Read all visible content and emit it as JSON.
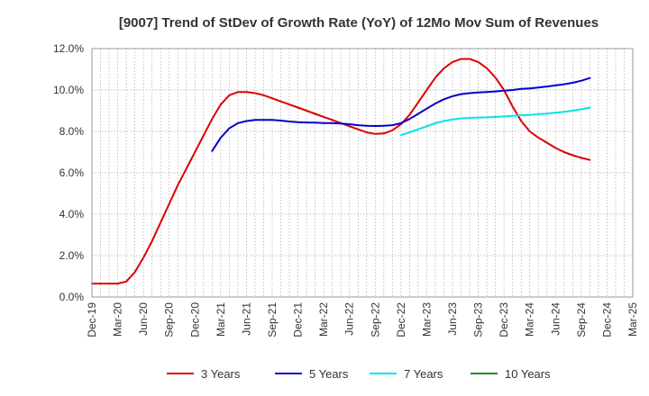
{
  "chart_data": {
    "type": "line",
    "title": "[9007]  Trend of StDev of Growth Rate (YoY) of 12Mo Mov Sum of Revenues",
    "xlabel": "",
    "ylabel": "",
    "ylim": [
      0,
      12
    ],
    "y_ticks": [
      {
        "value": 0,
        "label": "0.0%"
      },
      {
        "value": 2,
        "label": "2.0%"
      },
      {
        "value": 4,
        "label": "4.0%"
      },
      {
        "value": 6,
        "label": "6.0%"
      },
      {
        "value": 8,
        "label": "8.0%"
      },
      {
        "value": 10,
        "label": "10.0%"
      },
      {
        "value": 12,
        "label": "12.0%"
      }
    ],
    "x_ticks": [
      "Dec-19",
      "Mar-20",
      "Jun-20",
      "Sep-20",
      "Dec-20",
      "Mar-21",
      "Jun-21",
      "Sep-21",
      "Dec-21",
      "Mar-22",
      "Jun-22",
      "Sep-22",
      "Dec-22",
      "Mar-23",
      "Jun-23",
      "Sep-23",
      "Dec-23",
      "Mar-24",
      "Jun-24",
      "Sep-24",
      "Dec-24",
      "Mar-25"
    ],
    "grid": true,
    "legend_position": "bottom",
    "series": [
      {
        "name": "3 Years",
        "color": "#dd0000",
        "points": [
          [
            0,
            0.65
          ],
          [
            1,
            0.65
          ],
          [
            2,
            0.65
          ],
          [
            3,
            0.65
          ],
          [
            4,
            0.75
          ],
          [
            5,
            1.2
          ],
          [
            6,
            1.9
          ],
          [
            7,
            2.7
          ],
          [
            8,
            3.6
          ],
          [
            9,
            4.5
          ],
          [
            10,
            5.4
          ],
          [
            11,
            6.2
          ],
          [
            12,
            7.0
          ],
          [
            13,
            7.8
          ],
          [
            14,
            8.6
          ],
          [
            15,
            9.3
          ],
          [
            16,
            9.75
          ],
          [
            17,
            9.9
          ],
          [
            18,
            9.9
          ],
          [
            19,
            9.85
          ],
          [
            20,
            9.75
          ],
          [
            21,
            9.6
          ],
          [
            22,
            9.45
          ],
          [
            23,
            9.3
          ],
          [
            24,
            9.15
          ],
          [
            25,
            9.0
          ],
          [
            26,
            8.85
          ],
          [
            27,
            8.7
          ],
          [
            28,
            8.55
          ],
          [
            29,
            8.4
          ],
          [
            30,
            8.25
          ],
          [
            31,
            8.1
          ],
          [
            32,
            7.95
          ],
          [
            33,
            7.88
          ],
          [
            34,
            7.9
          ],
          [
            35,
            8.05
          ],
          [
            36,
            8.35
          ],
          [
            37,
            8.8
          ],
          [
            38,
            9.4
          ],
          [
            39,
            10.0
          ],
          [
            40,
            10.6
          ],
          [
            41,
            11.05
          ],
          [
            42,
            11.35
          ],
          [
            43,
            11.5
          ],
          [
            44,
            11.5
          ],
          [
            45,
            11.35
          ],
          [
            46,
            11.05
          ],
          [
            47,
            10.6
          ],
          [
            48,
            10.0
          ],
          [
            49,
            9.2
          ],
          [
            50,
            8.5
          ],
          [
            51,
            8.0
          ],
          [
            52,
            7.7
          ],
          [
            53,
            7.45
          ],
          [
            54,
            7.2
          ],
          [
            55,
            7.0
          ],
          [
            56,
            6.85
          ],
          [
            57,
            6.72
          ],
          [
            58,
            6.62
          ]
        ]
      },
      {
        "name": "5 Years",
        "color": "#0000cc",
        "points": [
          [
            14,
            7.05
          ],
          [
            15,
            7.7
          ],
          [
            16,
            8.15
          ],
          [
            17,
            8.4
          ],
          [
            18,
            8.5
          ],
          [
            19,
            8.55
          ],
          [
            20,
            8.55
          ],
          [
            21,
            8.55
          ],
          [
            22,
            8.52
          ],
          [
            23,
            8.48
          ],
          [
            24,
            8.45
          ],
          [
            25,
            8.43
          ],
          [
            26,
            8.42
          ],
          [
            27,
            8.4
          ],
          [
            28,
            8.4
          ],
          [
            29,
            8.38
          ],
          [
            30,
            8.35
          ],
          [
            31,
            8.3
          ],
          [
            32,
            8.27
          ],
          [
            33,
            8.26
          ],
          [
            34,
            8.27
          ],
          [
            35,
            8.3
          ],
          [
            36,
            8.4
          ],
          [
            37,
            8.6
          ],
          [
            38,
            8.85
          ],
          [
            39,
            9.1
          ],
          [
            40,
            9.35
          ],
          [
            41,
            9.55
          ],
          [
            42,
            9.7
          ],
          [
            43,
            9.8
          ],
          [
            44,
            9.85
          ],
          [
            45,
            9.88
          ],
          [
            46,
            9.9
          ],
          [
            47,
            9.93
          ],
          [
            48,
            9.97
          ],
          [
            49,
            10.0
          ],
          [
            50,
            10.05
          ],
          [
            51,
            10.08
          ],
          [
            52,
            10.12
          ],
          [
            53,
            10.17
          ],
          [
            54,
            10.22
          ],
          [
            55,
            10.28
          ],
          [
            56,
            10.35
          ],
          [
            57,
            10.45
          ],
          [
            58,
            10.58
          ]
        ]
      },
      {
        "name": "7 Years",
        "color": "#00e5e5",
        "points": [
          [
            36,
            7.82
          ],
          [
            37,
            7.95
          ],
          [
            38,
            8.1
          ],
          [
            39,
            8.25
          ],
          [
            40,
            8.4
          ],
          [
            41,
            8.5
          ],
          [
            42,
            8.58
          ],
          [
            43,
            8.63
          ],
          [
            44,
            8.65
          ],
          [
            45,
            8.67
          ],
          [
            46,
            8.68
          ],
          [
            47,
            8.7
          ],
          [
            48,
            8.72
          ],
          [
            49,
            8.75
          ],
          [
            50,
            8.78
          ],
          [
            51,
            8.8
          ],
          [
            52,
            8.83
          ],
          [
            53,
            8.86
          ],
          [
            54,
            8.9
          ],
          [
            55,
            8.95
          ],
          [
            56,
            9.0
          ],
          [
            57,
            9.07
          ],
          [
            58,
            9.15
          ]
        ]
      },
      {
        "name": "10 Years",
        "color": "#228b22",
        "points": []
      }
    ]
  }
}
